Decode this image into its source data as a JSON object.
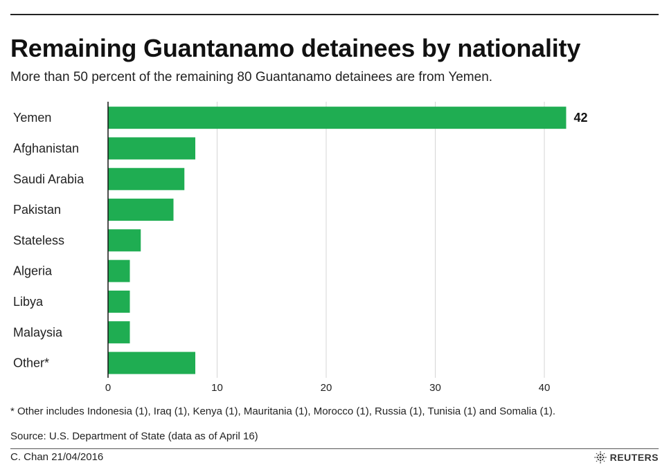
{
  "header": {
    "title": "Remaining Guantanamo detainees by nationality",
    "subtitle": "More than 50 percent of the remaining 80 Guantanamo detainees are from Yemen."
  },
  "footer": {
    "footnote": "* Other includes Indonesia (1), Iraq (1), Kenya (1), Mauritania (1), Morocco (1), Russia (1), Tunisia (1) and Somalia (1).",
    "source": "Source: U.S. Department of State (data as of April 16)",
    "credit": "C. Chan  21/04/2016",
    "brand": "REUTERS",
    "brand_icon": "reuters-logo-icon"
  },
  "chart_data": {
    "type": "bar",
    "orientation": "horizontal",
    "title": "Remaining Guantanamo detainees by nationality",
    "subtitle": "More than 50 percent of the remaining 80 Guantanamo detainees are from Yemen.",
    "categories": [
      "Yemen",
      "Afghanistan",
      "Saudi Arabia",
      "Pakistan",
      "Stateless",
      "Algeria",
      "Libya",
      "Malaysia",
      "Other*"
    ],
    "values": [
      42,
      8,
      7,
      6,
      3,
      2,
      2,
      2,
      8
    ],
    "data_labels": [
      {
        "category": "Yemen",
        "label": "42"
      }
    ],
    "xticks": [
      "0",
      "10",
      "20",
      "30",
      "40"
    ],
    "xlim": [
      0,
      45
    ],
    "grid": true,
    "bar_color": "#1fad52"
  }
}
